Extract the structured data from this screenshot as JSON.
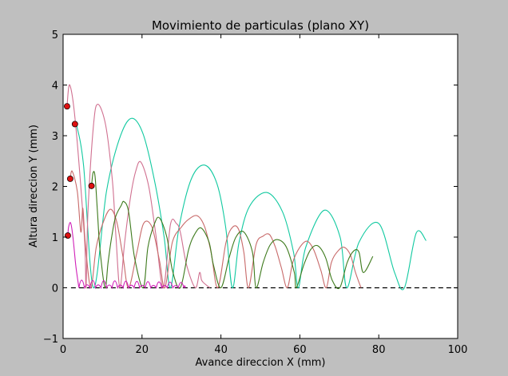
{
  "chart_data": {
    "type": "line",
    "title": "Movimiento de particulas (plano XY)",
    "xlabel": "Avance direccion X (mm)",
    "ylabel": "Altura direccion Y (mm)",
    "xlim": [
      0,
      100
    ],
    "ylim": [
      -1,
      5
    ],
    "xticks": [
      0,
      20,
      40,
      60,
      80,
      100
    ],
    "yticks": [
      -1,
      0,
      1,
      2,
      3,
      4,
      5
    ],
    "grid": false,
    "legend": "none",
    "baseline": {
      "y": 0,
      "x_range": [
        2,
        100
      ],
      "style": "dashed",
      "color": "#000000"
    },
    "colors": {
      "figure_background": "#bfbfbf",
      "axes_background": "#ffffff",
      "start_marker": "#dd1111"
    },
    "start_points": [
      {
        "x": 1.0,
        "y": 3.58
      },
      {
        "x": 3.0,
        "y": 3.23
      },
      {
        "x": 1.8,
        "y": 2.15
      },
      {
        "x": 7.2,
        "y": 2.01
      },
      {
        "x": 1.2,
        "y": 1.03
      }
    ],
    "series": [
      {
        "color": "#11c9a0",
        "x": [
          3.0,
          3.6,
          5.2,
          7.7,
          11.0,
          14.2,
          17.2,
          20.2,
          23.2,
          25.6,
          27.2,
          29.4,
          32.5,
          35.9,
          39.0,
          41.2,
          42.9,
          44.6,
          47.2,
          51.6,
          55.6,
          58.4,
          59.6,
          61.5,
          66.2,
          70.2,
          71.9,
          75.0,
          80.0,
          84.0,
          86.5,
          89.5,
          92.0
        ],
        "y": [
          3.23,
          3.15,
          2.4,
          0.0,
          1.9,
          2.92,
          3.34,
          3.05,
          2.1,
          1.0,
          0.0,
          1.2,
          2.15,
          2.42,
          2.05,
          1.2,
          0.0,
          0.9,
          1.6,
          1.88,
          1.5,
          0.7,
          0.0,
          0.8,
          1.53,
          1.0,
          0.0,
          0.9,
          1.27,
          0.3,
          0.0,
          1.08,
          0.93
        ]
      },
      {
        "color": "#d07090",
        "x": [
          1.0,
          1.7,
          3.2,
          5.4,
          5.8,
          6.3,
          7.7,
          8.8,
          10.8,
          12.5,
          13.4,
          14.4,
          15.6,
          17.1,
          18.4,
          19.7,
          21.7,
          23.5,
          25.4,
          27.2,
          28.7,
          29.7,
          31.3,
          33.5,
          34.6,
          35.1,
          35.9,
          37.2
        ],
        "y": [
          3.58,
          4.0,
          3.2,
          1.0,
          0.0,
          1.5,
          3.2,
          3.62,
          3.2,
          2.1,
          1.0,
          0.0,
          0.9,
          1.8,
          2.3,
          2.48,
          2.0,
          1.05,
          0.0,
          1.25,
          1.27,
          1.1,
          0.45,
          0.0,
          0.3,
          0.15,
          0.08,
          0.0
        ]
      },
      {
        "color": "#c86a6a",
        "x": [
          1.8,
          2.3,
          3.6,
          4.5,
          5.0,
          5.6,
          7.0,
          8.4,
          10.2,
          12.0,
          13.6,
          15.2,
          16.6,
          18.7,
          20.4,
          22.5,
          24.4,
          25.8,
          27.7,
          30.0,
          31.8,
          34.0,
          35.9,
          37.5,
          39.2,
          41.3,
          43.0,
          44.5,
          45.8,
          47.0,
          48.9,
          50.7,
          52.3,
          53.8,
          55.3,
          56.8,
          58.2,
          60.0,
          61.8,
          63.5,
          65.3,
          66.7,
          68.0,
          69.6,
          71.2,
          72.8,
          74.1,
          75.5
        ],
        "y": [
          2.15,
          2.3,
          1.9,
          1.1,
          1.57,
          0.9,
          0.0,
          0.8,
          1.3,
          1.55,
          1.3,
          0.6,
          0.0,
          0.7,
          1.27,
          1.2,
          0.55,
          0.0,
          0.9,
          1.2,
          1.35,
          1.42,
          1.2,
          0.7,
          0.0,
          0.9,
          1.2,
          1.15,
          0.7,
          0.0,
          0.85,
          1.02,
          1.05,
          0.8,
          0.4,
          0.0,
          0.5,
          0.8,
          0.92,
          0.75,
          0.35,
          0.0,
          0.5,
          0.72,
          0.8,
          0.65,
          0.3,
          0.0
        ]
      },
      {
        "color": "#3d7a1c",
        "x": [
          7.2,
          7.6,
          8.1,
          8.7,
          9.3,
          10.6,
          11.4,
          12.3,
          13.3,
          14.7,
          15.4,
          16.6,
          18.1,
          20.3,
          21.5,
          23.1,
          24.4,
          26.3,
          27.7,
          29.7,
          31.8,
          33.3,
          35.0,
          37.0,
          38.1,
          40.0,
          42.1,
          43.8,
          45.8,
          48.0,
          48.9,
          50.7,
          52.5,
          54.4,
          56.6,
          58.6,
          59.1,
          61.0,
          62.7,
          64.5,
          66.5,
          68.2,
          70.1,
          72.0,
          73.7,
          75.0,
          76.1,
          78.5
        ],
        "y": [
          2.01,
          2.27,
          2.2,
          1.5,
          0.8,
          0.0,
          0.5,
          1.0,
          1.4,
          1.62,
          1.7,
          1.5,
          0.6,
          0.0,
          0.8,
          1.25,
          1.38,
          1.0,
          0.35,
          0.0,
          0.75,
          1.05,
          1.18,
          0.9,
          0.45,
          0.0,
          0.6,
          1.0,
          1.1,
          0.7,
          0.0,
          0.5,
          0.85,
          0.95,
          0.8,
          0.3,
          0.0,
          0.45,
          0.75,
          0.83,
          0.6,
          0.15,
          0.0,
          0.5,
          0.73,
          0.7,
          0.3,
          0.62
        ]
      },
      {
        "color": "#d020b8",
        "hop_start": 4.0,
        "hop_step": 1.4,
        "hop_end": 31.0,
        "hop_height": [
          0.15,
          0.06
        ],
        "x": [
          1.2,
          1.4,
          1.9,
          2.5,
          3.2,
          4.0
        ],
        "y": [
          1.03,
          1.2,
          1.28,
          1.0,
          0.45,
          0.0
        ]
      }
    ]
  }
}
